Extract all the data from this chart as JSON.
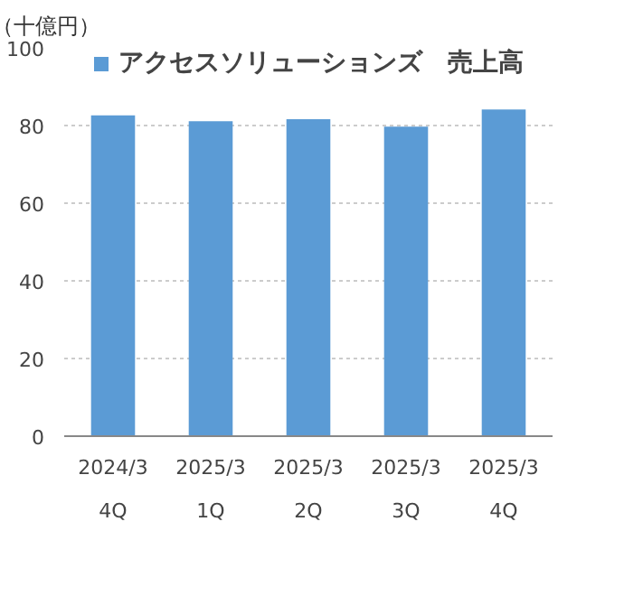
{
  "chart_data": {
    "type": "bar",
    "ylabel": "（十億円）",
    "categories": [
      "2024/3\n4Q",
      "2025/3\n1Q",
      "2025/3\n2Q",
      "2025/3\n3Q",
      "2025/3\n4Q"
    ],
    "series": [
      {
        "name": "アクセスソリューションズ　売上高",
        "color": "#5b9bd5",
        "values": [
          82.6,
          81.1,
          81.6,
          79.7,
          84.1
        ]
      }
    ],
    "ylim": [
      0,
      100
    ],
    "yticks": [
      0,
      20,
      40,
      60,
      80,
      100
    ],
    "grid": "y",
    "legend": "top"
  }
}
